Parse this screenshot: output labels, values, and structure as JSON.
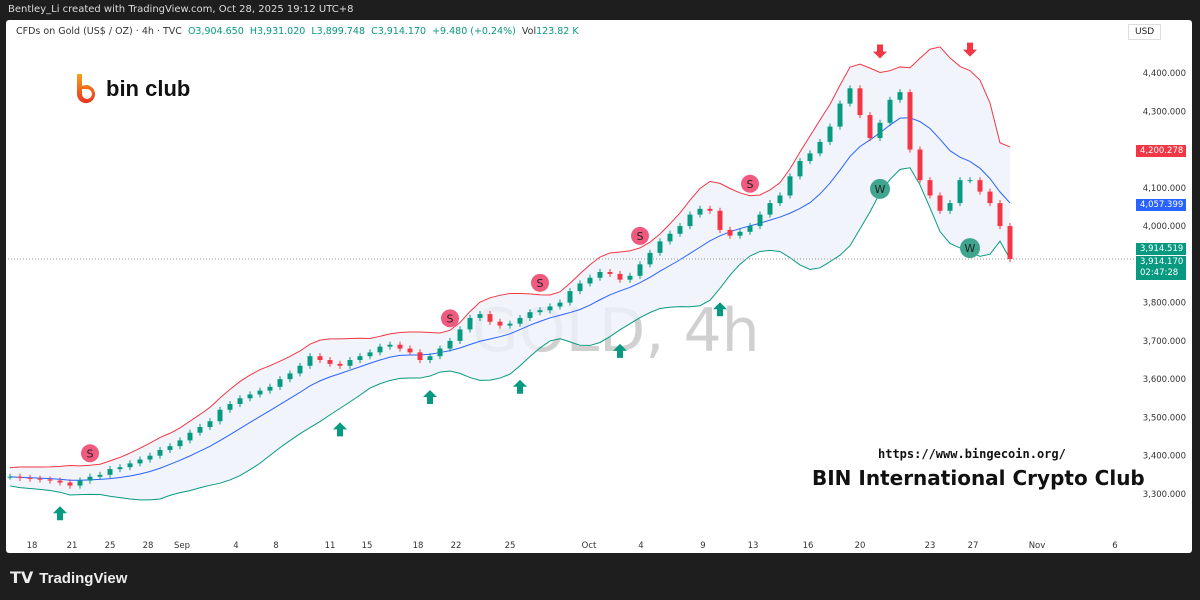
{
  "credit": "Bentley_Li created with TradingView.com, Oct 28, 2025 19:12 UTC+8",
  "legend": {
    "symbol": "CFDs on Gold (US$ / OZ) · 4h · TVC",
    "o": "O3,904.650",
    "h": "H3,931.020",
    "l": "L3,899.748",
    "c": "C3,914.170",
    "chg": "+9.480 (+0.24%)",
    "vol_label": "Vol",
    "vol": "123.82 K"
  },
  "currency": "USD",
  "logo_text": "bin club",
  "watermark": "GOLD, 4h",
  "url": "https://www.bingecoin.org/",
  "club": "BIN International Crypto Club",
  "footer": "TradingView",
  "colors": {
    "up": "#089981",
    "down": "#f23645",
    "upper_band": "#f23645",
    "basis": "#2962ff",
    "lower_band": "#089981",
    "band_fill": "#eef3fa",
    "sell": "#f05a7e",
    "buy_arrow": "#089981",
    "w_marker": "#3fa58f"
  },
  "price_tags": {
    "upper": "4,200.278",
    "basis": "4,057.399",
    "prev": "3,914.519",
    "last": "3,914.170",
    "countdown": "02:47:28"
  },
  "chart_data": {
    "type": "candlestick",
    "ylim": [
      3250,
      4450
    ],
    "y_ticks": [
      "4,400.000",
      "4,300.000",
      "4,200.000",
      "4,100.000",
      "4,000.000",
      "3,900.000",
      "3,800.000",
      "3,700.000",
      "3,600.000",
      "3,500.000",
      "3,400.000",
      "3,300.000"
    ],
    "x_ticks": [
      "18",
      "21",
      "25",
      "28",
      "Sep",
      "4",
      "8",
      "11",
      "15",
      "18",
      "22",
      "25",
      "Oct",
      "4",
      "9",
      "13",
      "16",
      "20",
      "23",
      "27",
      "Nov",
      "6"
    ],
    "closes": [
      3345,
      3342,
      3340,
      3338,
      3335,
      3330,
      3322,
      3335,
      3345,
      3350,
      3365,
      3370,
      3380,
      3390,
      3400,
      3415,
      3425,
      3440,
      3460,
      3475,
      3490,
      3520,
      3535,
      3550,
      3560,
      3570,
      3580,
      3600,
      3615,
      3635,
      3660,
      3650,
      3640,
      3635,
      3650,
      3660,
      3670,
      3685,
      3690,
      3680,
      3670,
      3650,
      3660,
      3680,
      3700,
      3730,
      3760,
      3770,
      3750,
      3740,
      3745,
      3760,
      3775,
      3780,
      3790,
      3800,
      3830,
      3850,
      3865,
      3880,
      3875,
      3860,
      3870,
      3900,
      3930,
      3960,
      3980,
      4000,
      4030,
      4045,
      4040,
      3990,
      3975,
      3985,
      4000,
      4030,
      4060,
      4080,
      4130,
      4170,
      4190,
      4220,
      4260,
      4320,
      4360,
      4290,
      4230,
      4270,
      4330,
      4350,
      4200,
      4120,
      4080,
      4040,
      4060,
      4120,
      4120,
      4090,
      4060,
      4000,
      3914
    ],
    "indicator": "Bollinger Bands (20, 2)",
    "markers": {
      "sell_S": [
        8,
        44,
        53,
        63,
        74
      ],
      "buy_arrow": [
        5,
        33,
        42,
        51,
        61,
        71
      ],
      "W": [
        87,
        96
      ],
      "down_arrow": [
        87,
        96
      ]
    }
  }
}
